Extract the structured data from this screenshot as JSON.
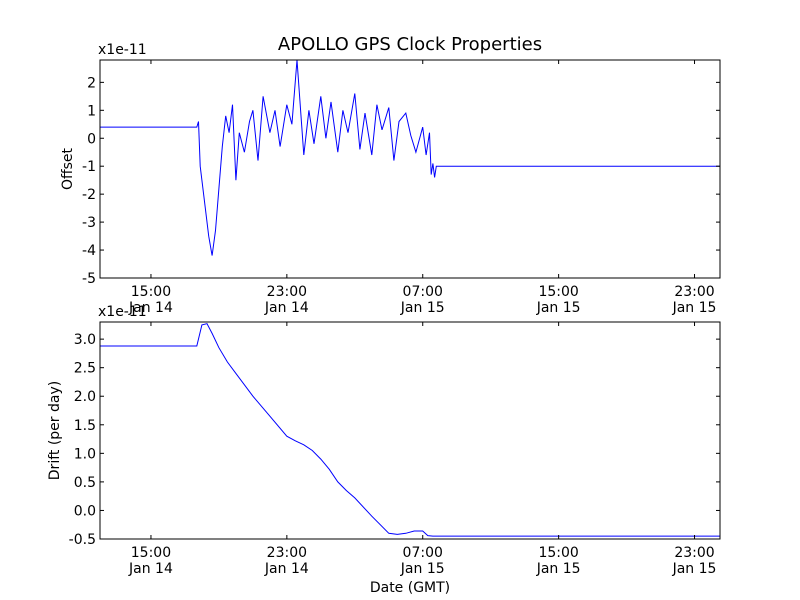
{
  "title": "APOLLO GPS Clock Properties",
  "chart_data": [
    {
      "type": "line",
      "id": "offset",
      "ylabel": "Offset",
      "xlabel": "",
      "scale_label": "x1e-11",
      "ylim": [
        -5,
        2.8
      ],
      "yticks": [
        -5,
        -4,
        -3,
        -2,
        -1,
        0,
        1,
        2
      ],
      "ytick_labels": [
        "-5",
        "-4",
        "-3",
        "-2",
        "-1",
        "0",
        "1",
        "2"
      ],
      "xlim": [
        12.0,
        48.5
      ],
      "xticks": [
        15,
        23,
        31,
        39,
        47
      ],
      "xtick_labels": [
        [
          "15:00",
          "Jan 14"
        ],
        [
          "23:00",
          "Jan 14"
        ],
        [
          "07:00",
          "Jan 15"
        ],
        [
          "15:00",
          "Jan 15"
        ],
        [
          "23:00",
          "Jan 15"
        ]
      ],
      "line_color": "#0000ff",
      "series": [
        {
          "name": "Offset",
          "x": [
            12.0,
            17.7,
            17.8,
            17.9,
            18.0,
            18.2,
            18.4,
            18.6,
            18.8,
            19.0,
            19.2,
            19.4,
            19.6,
            19.8,
            20.0,
            20.2,
            20.5,
            20.8,
            21.0,
            21.3,
            21.6,
            22.0,
            22.3,
            22.6,
            23.0,
            23.3,
            23.6,
            24.0,
            24.3,
            24.6,
            25.0,
            25.3,
            25.6,
            26.0,
            26.3,
            26.6,
            27.0,
            27.3,
            27.6,
            28.0,
            28.3,
            28.6,
            29.0,
            29.3,
            29.6,
            30.0,
            30.3,
            30.6,
            31.0,
            31.2,
            31.4,
            31.5,
            31.6,
            31.7,
            31.8,
            48.5
          ],
          "values": [
            0.4,
            0.4,
            0.6,
            -1.0,
            -1.5,
            -2.5,
            -3.5,
            -4.2,
            -3.3,
            -1.8,
            -0.3,
            0.8,
            0.2,
            1.2,
            -1.5,
            0.2,
            -0.5,
            0.6,
            1.0,
            -0.8,
            1.5,
            0.2,
            1.0,
            -0.3,
            1.2,
            0.5,
            2.8,
            -0.6,
            1.0,
            -0.2,
            1.5,
            0.0,
            1.3,
            -0.5,
            1.0,
            0.2,
            1.6,
            -0.4,
            0.9,
            -0.6,
            1.2,
            0.3,
            1.1,
            -0.8,
            0.6,
            0.9,
            0.1,
            -0.5,
            0.4,
            -0.6,
            0.2,
            -1.3,
            -0.9,
            -1.4,
            -1.0,
            -1.0
          ]
        }
      ]
    },
    {
      "type": "line",
      "id": "drift",
      "ylabel": "Drift (per day)",
      "xlabel": "Date (GMT)",
      "scale_label": "x1e-11",
      "ylim": [
        -0.5,
        3.3
      ],
      "yticks": [
        -0.5,
        0.0,
        0.5,
        1.0,
        1.5,
        2.0,
        2.5,
        3.0
      ],
      "ytick_labels": [
        "-0.5",
        "0.0",
        "0.5",
        "1.0",
        "1.5",
        "2.0",
        "2.5",
        "3.0"
      ],
      "xlim": [
        12.0,
        48.5
      ],
      "xticks": [
        15,
        23,
        31,
        39,
        47
      ],
      "xtick_labels": [
        [
          "15:00",
          "Jan 14"
        ],
        [
          "23:00",
          "Jan 14"
        ],
        [
          "07:00",
          "Jan 15"
        ],
        [
          "15:00",
          "Jan 15"
        ],
        [
          "23:00",
          "Jan 15"
        ]
      ],
      "line_color": "#0000ff",
      "series": [
        {
          "name": "Drift",
          "x": [
            12.0,
            17.7,
            18.0,
            18.3,
            18.6,
            19.0,
            19.5,
            20.0,
            21.0,
            22.0,
            23.0,
            23.5,
            24.0,
            24.5,
            25.0,
            25.5,
            26.0,
            26.5,
            27.0,
            28.0,
            29.0,
            29.5,
            30.0,
            30.5,
            31.0,
            31.3,
            31.6,
            32.0,
            48.5
          ],
          "values": [
            2.88,
            2.88,
            3.25,
            3.27,
            3.1,
            2.85,
            2.6,
            2.4,
            2.0,
            1.65,
            1.3,
            1.22,
            1.15,
            1.05,
            0.9,
            0.72,
            0.5,
            0.35,
            0.22,
            -0.1,
            -0.4,
            -0.42,
            -0.4,
            -0.36,
            -0.36,
            -0.44,
            -0.45,
            -0.45,
            -0.45
          ]
        }
      ]
    }
  ]
}
